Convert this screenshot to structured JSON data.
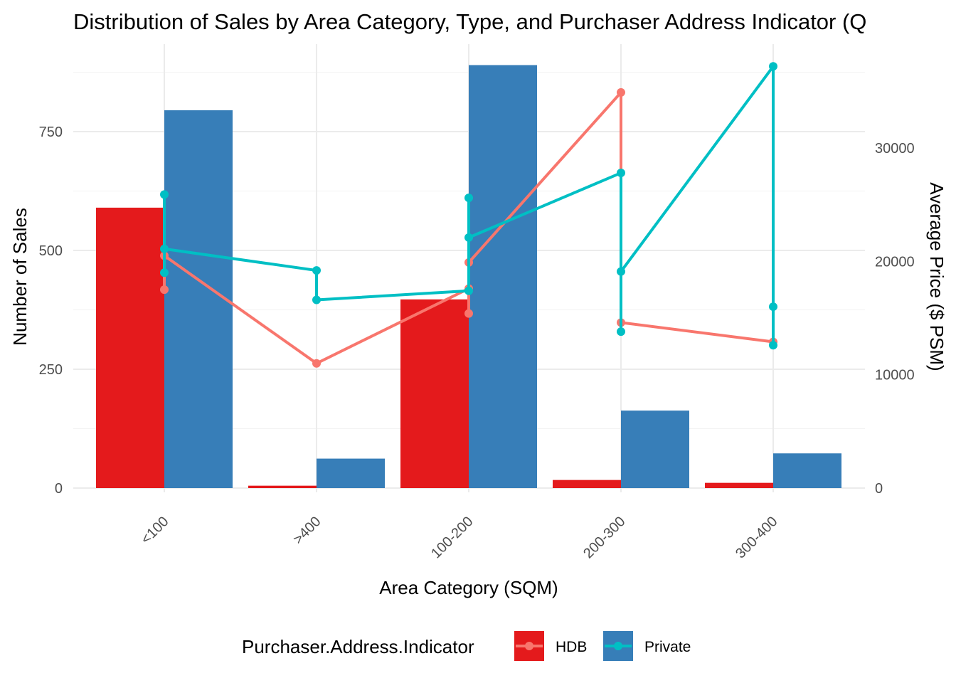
{
  "chart_data": {
    "type": "bar",
    "title": "Distribution of Sales by Area Category, Type, and Purchaser Address Indicator (Q",
    "xlabel": "Area Category (SQM)",
    "ylabel": "Number of Sales",
    "y2label": "Average Price ($ PSM)",
    "categories": [
      "<100",
      ">400",
      "100-200",
      "200-300",
      "300-400"
    ],
    "ylim": [
      0,
      900
    ],
    "y_ticks": [
      "0",
      "250",
      "500",
      "750"
    ],
    "y2lim": [
      0,
      37400
    ],
    "y2_ticks": [
      "0",
      "10000",
      "20000",
      "30000"
    ],
    "grid": true,
    "legend": {
      "title": "Purchaser.Address.Indicator",
      "position": "bottom",
      "items": [
        "HDB",
        "Private"
      ]
    },
    "series": [
      {
        "name": "HDB",
        "color": "#E41A1C",
        "values": [
          590,
          5,
          397,
          17,
          11
        ]
      },
      {
        "name": "Private",
        "color": "#377EB8",
        "values": [
          795,
          62,
          890,
          163,
          73
        ]
      }
    ],
    "line_series": [
      {
        "name": "HDB",
        "color": "#F8766D",
        "points": [
          {
            "x": "<100",
            "y": 17500
          },
          {
            "x": "<100",
            "y": 20500
          },
          {
            "x": ">400",
            "y": 11000
          },
          {
            "x": "100-200",
            "y": 17600
          },
          {
            "x": "100-200",
            "y": 15400
          },
          {
            "x": "100-200",
            "y": 19900
          },
          {
            "x": "200-300",
            "y": 34900
          },
          {
            "x": "200-300",
            "y": 14600
          },
          {
            "x": "300-400",
            "y": 12900
          }
        ]
      },
      {
        "name": "Private",
        "color": "#00BFC4",
        "points": [
          {
            "x": "<100",
            "y": 19000
          },
          {
            "x": "<100",
            "y": 25900
          },
          {
            "x": "<100",
            "y": 21100
          },
          {
            "x": ">400",
            "y": 19200
          },
          {
            "x": ">400",
            "y": 16600
          },
          {
            "x": "100-200",
            "y": 17400
          },
          {
            "x": "100-200",
            "y": 25600
          },
          {
            "x": "100-200",
            "y": 22100
          },
          {
            "x": "200-300",
            "y": 27800
          },
          {
            "x": "200-300",
            "y": 13800
          },
          {
            "x": "200-300",
            "y": 19100
          },
          {
            "x": "300-400",
            "y": 37200
          },
          {
            "x": "300-400",
            "y": 16000
          },
          {
            "x": "300-400",
            "y": 12600
          }
        ]
      }
    ]
  }
}
